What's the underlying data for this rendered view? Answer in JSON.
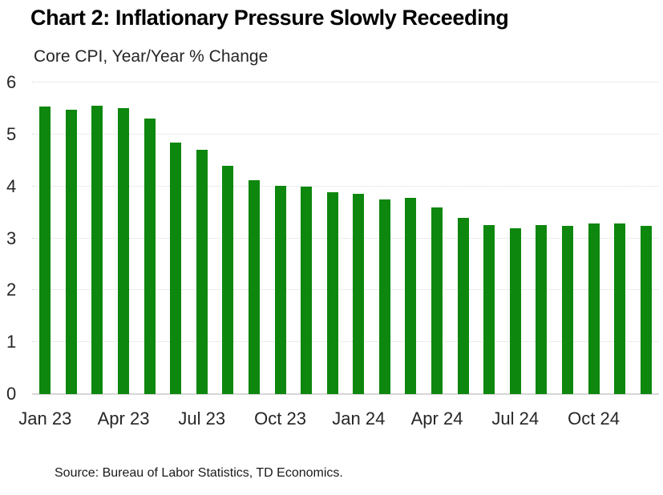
{
  "title": "Chart 2: Inflationary Pressure Slowly Receeding",
  "subtitle": "Core CPI, Year/Year % Change",
  "source": "Source: Bureau of Labor Statistics, TD Economics.",
  "chart_data": {
    "type": "bar",
    "title": "Chart 2: Inflationary Pressure Slowly Receeding",
    "ylabel": "Core CPI, Year/Year % Change",
    "xlabel": "",
    "categories": [
      "Jan 23",
      "Feb 23",
      "Mar 23",
      "Apr 23",
      "May 23",
      "Jun 23",
      "Jul 23",
      "Aug 23",
      "Sep 23",
      "Oct 23",
      "Nov 23",
      "Dec 23",
      "Jan 24",
      "Feb 24",
      "Mar 24",
      "Apr 24",
      "May 24",
      "Jun 24",
      "Jul 24",
      "Aug 24",
      "Sep 24",
      "Oct 24",
      "Nov 24",
      "Dec 24"
    ],
    "values": [
      5.53,
      5.48,
      5.56,
      5.51,
      5.31,
      4.84,
      4.7,
      4.39,
      4.12,
      4.01,
      4.0,
      3.89,
      3.86,
      3.75,
      3.78,
      3.59,
      3.39,
      3.26,
      3.19,
      3.25,
      3.24,
      3.28,
      3.28,
      3.24
    ],
    "x_tick_labels": [
      "Jan 23",
      "Apr 23",
      "Jul 23",
      "Oct 23",
      "Jan 24",
      "Apr 24",
      "Jul 24",
      "Oct 24"
    ],
    "x_tick_every": 3,
    "y_ticks": [
      0,
      1,
      2,
      3,
      4,
      5,
      6
    ],
    "ylim": [
      0,
      6
    ],
    "bar_color": "#0e870e",
    "grid": true,
    "gridline_color": "#d9d9d9",
    "axis_line_color": "#d6d6d6",
    "legend": false
  }
}
